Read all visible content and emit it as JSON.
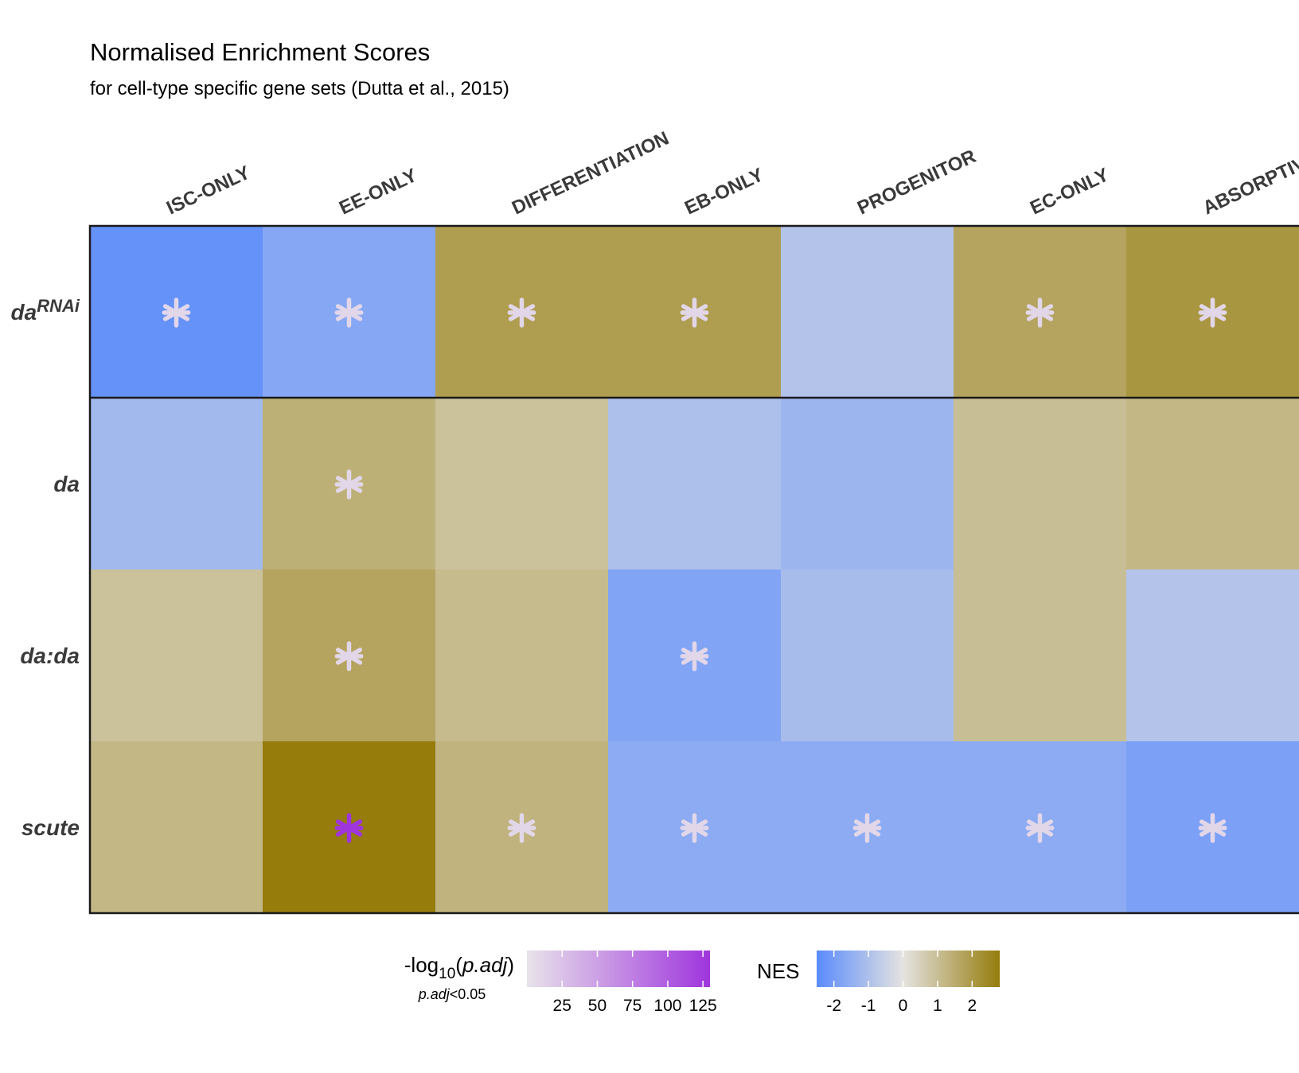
{
  "chart_data": {
    "type": "heatmap",
    "title": "Normalised Enrichment Scores",
    "subtitle": "for cell-type specific gene sets (Dutta et al., 2015)",
    "columns": [
      "ISC-ONLY",
      "EE-ONLY",
      "DIFFERENTIATION",
      "EB-ONLY",
      "PROGENITOR",
      "EC-ONLY",
      "ABSORPTIVE"
    ],
    "rows": [
      {
        "label": "da",
        "superscript": "RNAi"
      },
      {
        "label": "da",
        "superscript": ""
      },
      {
        "label": "da:da",
        "superscript": ""
      },
      {
        "label": "scute",
        "superscript": ""
      }
    ],
    "nes": [
      [
        -2.3,
        -1.7,
        1.9,
        1.9,
        -0.9,
        1.7,
        2.1
      ],
      [
        -1.2,
        1.4,
        0.9,
        -1.0,
        -1.3,
        1.0,
        1.2
      ],
      [
        0.9,
        1.7,
        1.1,
        -1.8,
        -1.1,
        1.0,
        -0.9
      ],
      [
        1.2,
        2.9,
        1.3,
        -1.6,
        -1.6,
        -1.6,
        -1.9
      ]
    ],
    "significance": [
      [
        10,
        10,
        10,
        10,
        null,
        10,
        10
      ],
      [
        null,
        10,
        null,
        null,
        null,
        null,
        null
      ],
      [
        null,
        10,
        null,
        10,
        null,
        null,
        null
      ],
      [
        null,
        130,
        10,
        10,
        10,
        10,
        10
      ]
    ],
    "legend_p": {
      "title_prefix": "-log",
      "title_sub": "10",
      "title_open": "(",
      "title_var": "p.adj",
      "title_close": ")",
      "note_var": "p.adj",
      "note_rest": "<0.05",
      "ticks": [
        25,
        50,
        75,
        100,
        125
      ],
      "range": [
        0,
        130
      ],
      "colors": [
        "#e8e3ea",
        "#9f35dd"
      ]
    },
    "legend_nes": {
      "title": "NES",
      "ticks": [
        -2,
        -1,
        0,
        1,
        2
      ],
      "range": [
        -2.5,
        2.8
      ],
      "colors": [
        "#5a8bfb",
        "#e5e3e1",
        "#957c0b"
      ]
    },
    "colors": {
      "negative": "#5a8bfb",
      "neutral": "#e5e3e1",
      "positive": "#957c0b",
      "star_default": "#e8e3ea",
      "star_max": "#9f35dd"
    },
    "divider_after_row": 0
  }
}
